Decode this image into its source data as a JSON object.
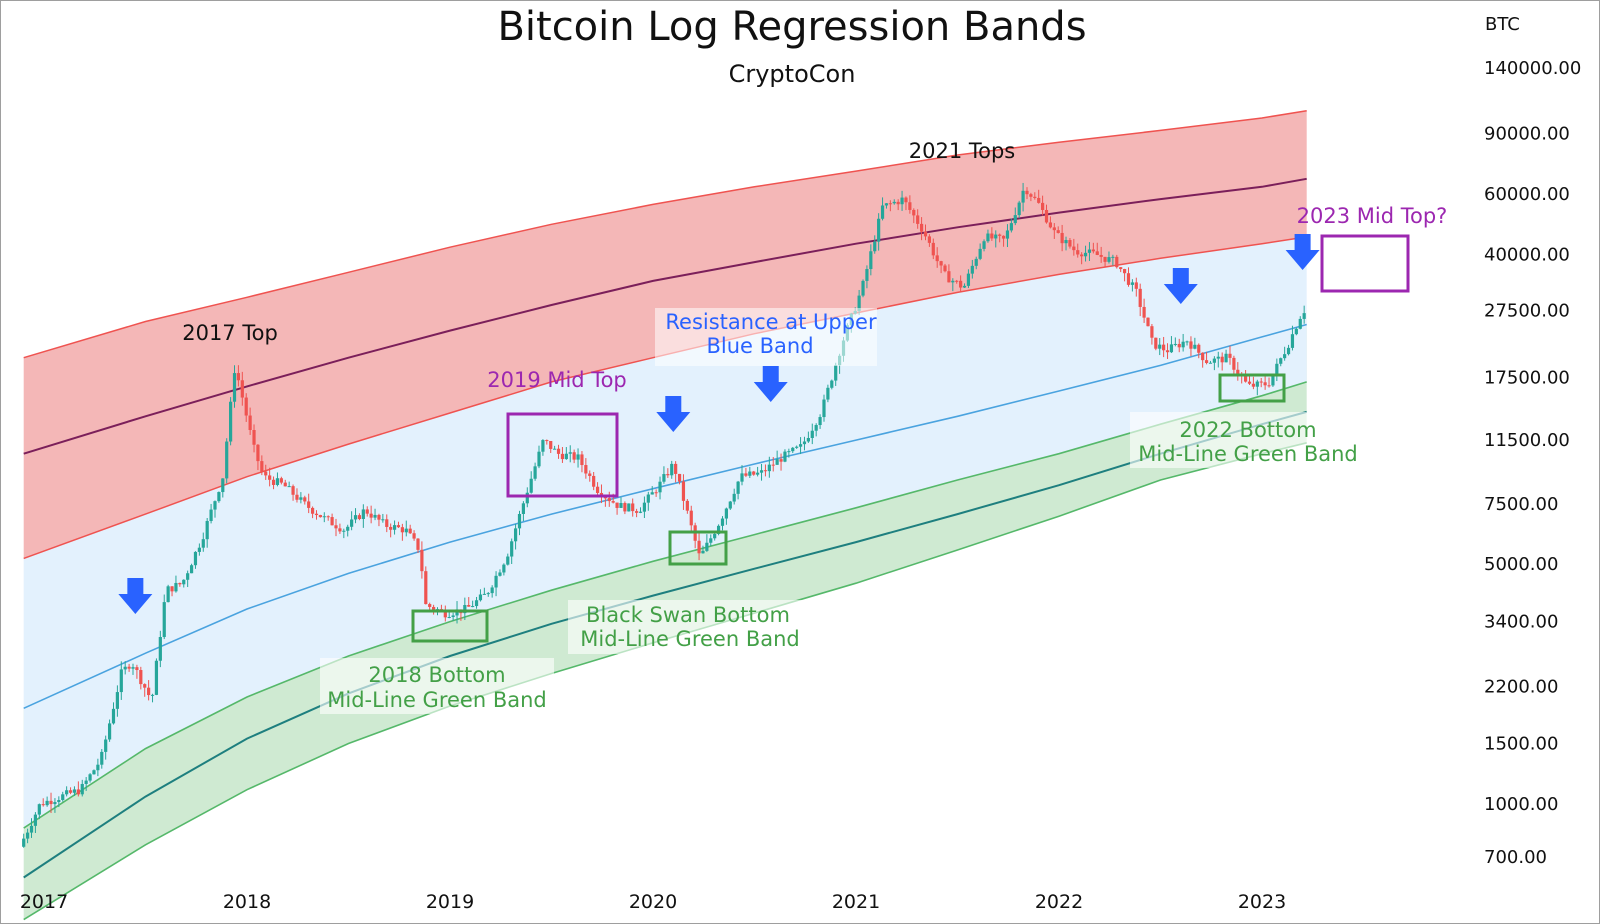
{
  "chart_data": {
    "type": "line",
    "title": "Bitcoin Log Regression Bands",
    "subtitle": "CryptoCon",
    "currency": "BTC",
    "y_scale": "log",
    "ylim": [
      600,
      160000
    ],
    "xlim": [
      2016.9,
      2023.65
    ],
    "yticks": [
      {
        "value": 140000,
        "label": "140000.00"
      },
      {
        "value": 90000,
        "label": "90000.00"
      },
      {
        "value": 60000,
        "label": "60000.00"
      },
      {
        "value": 40000,
        "label": "40000.00"
      },
      {
        "value": 27500,
        "label": "27500.00"
      },
      {
        "value": 17500,
        "label": "17500.00"
      },
      {
        "value": 11500,
        "label": "11500.00"
      },
      {
        "value": 7500,
        "label": "7500.00"
      },
      {
        "value": 5000,
        "label": "5000.00"
      },
      {
        "value": 3400,
        "label": "3400.00"
      },
      {
        "value": 2200,
        "label": "2200.00"
      },
      {
        "value": 1500,
        "label": "1500.00"
      },
      {
        "value": 1000,
        "label": "1000.00"
      },
      {
        "value": 700,
        "label": "700.00"
      }
    ],
    "xticks": [
      {
        "value": 2017.0,
        "label": "2017"
      },
      {
        "value": 2018.0,
        "label": "2018"
      },
      {
        "value": 2019.0,
        "label": "2019"
      },
      {
        "value": 2020.0,
        "label": "2020"
      },
      {
        "value": 2021.0,
        "label": "2021"
      },
      {
        "value": 2022.0,
        "label": "2022"
      },
      {
        "value": 2023.0,
        "label": "2023"
      }
    ],
    "bands": {
      "x": [
        2016.9,
        2017.5,
        2018.0,
        2018.5,
        2019.0,
        2019.5,
        2020.0,
        2020.5,
        2021.0,
        2021.5,
        2022.0,
        2022.5,
        2023.0,
        2023.22
      ],
      "red_upper": [
        20000,
        25500,
        30000,
        35500,
        42000,
        49000,
        56000,
        63000,
        70000,
        78000,
        85000,
        92000,
        100000,
        105000
      ],
      "purple_mid": [
        10500,
        13500,
        16500,
        20000,
        24000,
        28500,
        33500,
        38000,
        43000,
        48000,
        53000,
        58000,
        63000,
        66500
      ],
      "red_lower": [
        5200,
        7000,
        9000,
        11200,
        13800,
        17000,
        20000,
        23500,
        27000,
        31000,
        35000,
        39000,
        43000,
        45000
      ],
      "blue_upper": [
        1900,
        2750,
        3700,
        4700,
        5800,
        7000,
        8300,
        9800,
        11500,
        13500,
        16000,
        19000,
        23000,
        25000
      ],
      "green_upper": [
        850,
        1450,
        2050,
        2700,
        3400,
        4200,
        5100,
        6100,
        7300,
        8800,
        10500,
        12800,
        15500,
        17000
      ],
      "green_mid": [
        610,
        1050,
        1550,
        2100,
        2700,
        3350,
        4050,
        4850,
        5800,
        7000,
        8500,
        10500,
        12800,
        13900
      ],
      "green_lower": [
        460,
        760,
        1100,
        1500,
        1930,
        2400,
        2950,
        3600,
        4400,
        5500,
        6900,
        8800,
        10500,
        11300
      ]
    },
    "price_series": {
      "name": "BTC",
      "x": [
        2016.9,
        2017.0,
        2017.1,
        2017.2,
        2017.3,
        2017.4,
        2017.45,
        2017.55,
        2017.62,
        2017.7,
        2017.8,
        2017.9,
        2017.96,
        2018.0,
        2018.05,
        2018.1,
        2018.2,
        2018.3,
        2018.4,
        2018.5,
        2018.6,
        2018.7,
        2018.8,
        2018.87,
        2018.9,
        2019.0,
        2019.1,
        2019.2,
        2019.3,
        2019.4,
        2019.48,
        2019.55,
        2019.65,
        2019.75,
        2019.85,
        2019.95,
        2020.05,
        2020.12,
        2020.19,
        2020.25,
        2020.35,
        2020.45,
        2020.55,
        2020.65,
        2020.75,
        2020.85,
        2020.95,
        2021.05,
        2021.15,
        2021.25,
        2021.35,
        2021.45,
        2021.55,
        2021.65,
        2021.75,
        2021.85,
        2021.92,
        2022.0,
        2022.1,
        2022.2,
        2022.3,
        2022.4,
        2022.48,
        2022.55,
        2022.65,
        2022.75,
        2022.85,
        2022.95,
        2023.05,
        2023.15,
        2023.22
      ],
      "values": [
        750,
        1000,
        1050,
        1100,
        1350,
        2400,
        2600,
        2000,
        4200,
        4400,
        6000,
        9000,
        19000,
        15000,
        11000,
        9000,
        8500,
        7500,
        6800,
        6300,
        7200,
        6500,
        6300,
        5500,
        3800,
        3600,
        3700,
        4100,
        5300,
        8200,
        11500,
        10500,
        10200,
        8200,
        7400,
        7200,
        8500,
        9800,
        7000,
        5200,
        6700,
        9000,
        9200,
        10200,
        11000,
        14000,
        22000,
        32000,
        55000,
        58000,
        47000,
        35000,
        32000,
        45000,
        44000,
        63000,
        56000,
        46000,
        41000,
        40000,
        38000,
        31000,
        22000,
        21000,
        22500,
        19500,
        20000,
        16500,
        16800,
        22000,
        27500
      ]
    },
    "annotations": {
      "top_2017": "2017 Top",
      "tops_2021": "2021 Tops",
      "mid_top_2019": "2019 Mid Top",
      "mid_top_2023": "2023 Mid Top?",
      "resistance_line1": "Resistance at Upper",
      "resistance_line2": "Blue Band",
      "bottom_2018_line1": "2018 Bottom",
      "bottom_2018_line2": "Mid-Line Green Band",
      "black_swan_line1": "Black Swan Bottom",
      "black_swan_line2": "Mid-Line Green Band",
      "bottom_2022_line1": "2022 Bottom",
      "bottom_2022_line2": "Mid-Line Green Band"
    },
    "marker_arrows_x": [
      2017.45,
      2020.1,
      2020.58,
      2022.6,
      2023.2
    ],
    "legend": "none",
    "grid": false,
    "colors": {
      "red_band": "#f4b7b7",
      "red_edge": "#ef5350",
      "purple_mid": "#7b1f5a",
      "blue_band": "#e3f1fd",
      "blue_edge": "#4aa3df",
      "green_band": "#cfead2",
      "green_edge": "#55b86a",
      "green_mid": "#1e7f7f",
      "candle_up": "#26a69a",
      "candle_down": "#ef5350",
      "arrow": "#2962ff",
      "purple_box": "#9c27b0",
      "green_box": "#43a047",
      "text_purple": "#9c27b0",
      "text_blue": "#2962ff",
      "text_green": "#43a047"
    }
  }
}
